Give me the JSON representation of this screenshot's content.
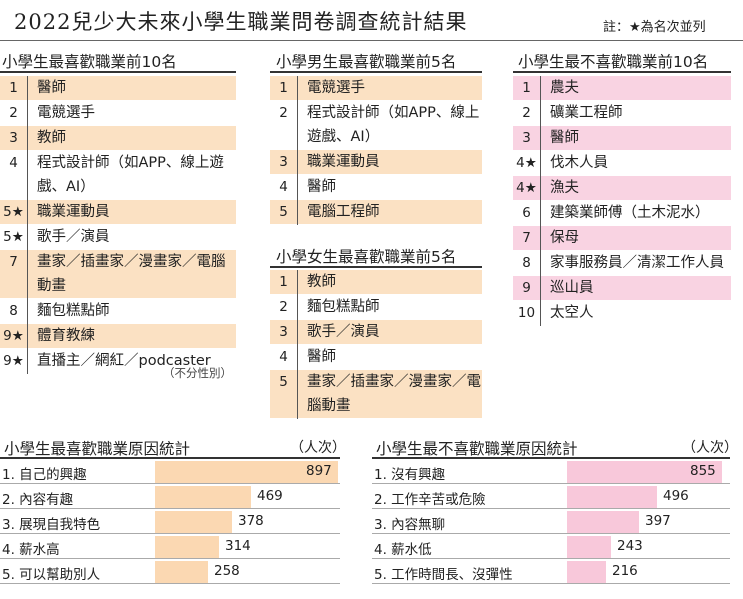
{
  "title": "2022兒少大未來小學生職業問卷調查統計結果",
  "note": "註：★為名次並列",
  "tables": {
    "fav_all": {
      "title": "小學生最喜歡職業前10名",
      "rows": [
        {
          "rank": "1",
          "text": "醫師",
          "hl": true
        },
        {
          "rank": "2",
          "text": "電競選手",
          "hl": false
        },
        {
          "rank": "3",
          "text": "教師",
          "hl": true
        },
        {
          "rank": "4",
          "text": "程式設計師（如APP、線上遊戲、AI）",
          "hl": false
        },
        {
          "rank": "5★",
          "text": "職業運動員",
          "hl": true
        },
        {
          "rank": "5★",
          "text": "歌手／演員",
          "hl": false
        },
        {
          "rank": "7",
          "text": "畫家／插畫家／漫畫家／電腦動畫",
          "hl": true
        },
        {
          "rank": "8",
          "text": "麵包糕點師",
          "hl": false
        },
        {
          "rank": "9★",
          "text": "體育教練",
          "hl": true
        },
        {
          "rank": "9★",
          "text": "直播主／網紅／podcaster",
          "hl": false
        }
      ],
      "footnote": "（不分性別）"
    },
    "fav_boys": {
      "title": "小學男生最喜歡職業前5名",
      "rows": [
        {
          "rank": "1",
          "text": "電競選手",
          "hl": true
        },
        {
          "rank": "2",
          "text": "程式設計師（如APP、線上遊戲、AI）",
          "hl": false
        },
        {
          "rank": "3",
          "text": "職業運動員",
          "hl": true
        },
        {
          "rank": "4",
          "text": "醫師",
          "hl": false
        },
        {
          "rank": "5",
          "text": "電腦工程師",
          "hl": true
        }
      ]
    },
    "fav_girls": {
      "title": "小學女生最喜歡職業前5名",
      "rows": [
        {
          "rank": "1",
          "text": "教師",
          "hl": true
        },
        {
          "rank": "2",
          "text": "麵包糕點師",
          "hl": false
        },
        {
          "rank": "3",
          "text": "歌手／演員",
          "hl": true
        },
        {
          "rank": "4",
          "text": "醫師",
          "hl": false
        },
        {
          "rank": "5",
          "text": "畫家／插畫家／漫畫家／電腦動畫",
          "hl": true
        }
      ]
    },
    "dislike_all": {
      "title": "小學生最不喜歡職業前10名",
      "rows": [
        {
          "rank": "1",
          "text": "農夫",
          "hl": true
        },
        {
          "rank": "2",
          "text": "礦業工程師",
          "hl": false
        },
        {
          "rank": "3",
          "text": "醫師",
          "hl": true
        },
        {
          "rank": "4★",
          "text": "伐木人員",
          "hl": false
        },
        {
          "rank": "4★",
          "text": "漁夫",
          "hl": true
        },
        {
          "rank": "6",
          "text": "建築業師傅（土木泥水）",
          "hl": false
        },
        {
          "rank": "7",
          "text": "保母",
          "hl": true
        },
        {
          "rank": "8",
          "text": "家事服務員／清潔工作人員",
          "hl": false
        },
        {
          "rank": "9",
          "text": "巡山員",
          "hl": true
        },
        {
          "rank": "10",
          "text": "太空人",
          "hl": false
        }
      ]
    }
  },
  "chart_data": [
    {
      "type": "bar",
      "title": "小學生最喜歡職業原因統計",
      "unit": "（人次）",
      "categories": [
        "1. 自己的興趣",
        "2. 內容有趣",
        "3. 展現自我特色",
        "4. 薪水高",
        "5. 可以幫助別人"
      ],
      "values": [
        897,
        469,
        378,
        314,
        258
      ],
      "color": "#fbd8b2"
    },
    {
      "type": "bar",
      "title": "小學生最不喜歡職業原因統計",
      "unit": "（人次）",
      "categories": [
        "1. 沒有興趣",
        "2. 工作辛苦或危險",
        "3. 內容無聊",
        "4. 薪水低",
        "5. 工作時間長、沒彈性"
      ],
      "values": [
        855,
        496,
        397,
        243,
        216
      ],
      "color": "#f8c8da"
    }
  ]
}
